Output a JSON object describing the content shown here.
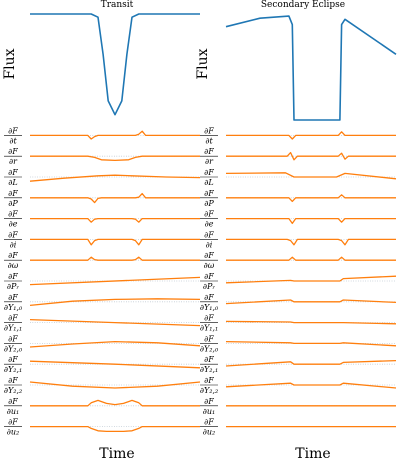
{
  "chart_data": [
    {
      "type": "line",
      "title": "Transit",
      "xlabel": "Time",
      "ylabel": "Flux",
      "x_ticks": "none",
      "y_ticks": "none",
      "flux": {
        "x": [
          0,
          0.36,
          0.4,
          0.43,
          0.46,
          0.5,
          0.54,
          0.57,
          0.6,
          0.64,
          1.0
        ],
        "y": [
          1,
          1,
          0.97,
          0.62,
          0.18,
          0.05,
          0.18,
          0.62,
          0.97,
          1,
          1
        ]
      },
      "derivatives": [
        {
          "label_num": "∂F",
          "label_den": "∂t",
          "x": [
            0,
            0.34,
            0.36,
            0.38,
            0.4,
            0.62,
            0.64,
            0.66,
            0.68,
            1
          ],
          "y": [
            0,
            0,
            -0.6,
            -0.2,
            0,
            0,
            0.2,
            0.7,
            0,
            0
          ]
        },
        {
          "label_num": "∂F",
          "label_den": "∂r",
          "x": [
            0,
            0.34,
            0.38,
            0.42,
            0.5,
            0.58,
            0.62,
            0.66,
            1
          ],
          "y": [
            0,
            0,
            -0.2,
            -0.6,
            -0.7,
            -0.6,
            -0.2,
            0,
            0
          ]
        },
        {
          "label_num": "∂F",
          "label_den": "∂L",
          "x": [
            0,
            0.2,
            0.4,
            0.5,
            0.6,
            0.8,
            1
          ],
          "y": [
            -0.7,
            -0.2,
            0.2,
            0.3,
            0.2,
            0,
            -0.1
          ]
        },
        {
          "label_num": "∂F",
          "label_den": "∂P",
          "x": [
            0,
            0.34,
            0.36,
            0.38,
            0.4,
            0.42,
            0.62,
            0.64,
            0.66,
            0.68,
            1
          ],
          "y": [
            0,
            0,
            -0.2,
            -0.8,
            -0.1,
            0,
            0,
            0.1,
            0.7,
            0,
            0
          ]
        },
        {
          "label_num": "∂F",
          "label_den": "∂e",
          "x": [
            0,
            0.34,
            0.36,
            0.38,
            0.4,
            0.6,
            0.62,
            0.64,
            0.66,
            1
          ],
          "y": [
            0,
            0,
            -0.6,
            -0.1,
            0,
            0,
            -0.1,
            -0.6,
            0,
            0
          ]
        },
        {
          "label_num": "∂F",
          "label_den": "∂i",
          "x": [
            0,
            0.34,
            0.36,
            0.38,
            0.4,
            0.6,
            0.62,
            0.64,
            0.66,
            1
          ],
          "y": [
            0,
            0,
            -0.9,
            -0.2,
            0,
            0,
            -0.2,
            -0.9,
            0,
            0
          ]
        },
        {
          "label_num": "∂F",
          "label_den": "∂ω",
          "x": [
            0,
            0.34,
            0.36,
            0.38,
            0.4,
            0.6,
            0.62,
            0.64,
            0.66,
            1
          ],
          "y": [
            0,
            0,
            0.5,
            0.1,
            0,
            0,
            0.1,
            0.5,
            0,
            0
          ]
        },
        {
          "label_num": "∂F",
          "label_den": "∂Pᵣ",
          "x": [
            0,
            1
          ],
          "y": [
            -0.6,
            0.6
          ]
        },
        {
          "label_num": "∂F",
          "label_den": "∂Y₁,₀",
          "x": [
            0,
            0.25,
            0.5,
            0.75,
            1
          ],
          "y": [
            -0.6,
            0.1,
            0.4,
            0.5,
            0.4
          ]
        },
        {
          "label_num": "∂F",
          "label_den": "∂Y₁,₁",
          "x": [
            0,
            0.5,
            1
          ],
          "y": [
            0.5,
            0,
            -0.5
          ]
        },
        {
          "label_num": "∂F",
          "label_den": "∂Y₂,₀",
          "x": [
            0,
            0.25,
            0.5,
            0.75,
            1
          ],
          "y": [
            -0.6,
            -0.1,
            0.3,
            0.1,
            -0.4
          ]
        },
        {
          "label_num": "∂F",
          "label_den": "∂Y₂,₁",
          "x": [
            0,
            0.5,
            1
          ],
          "y": [
            0.5,
            0,
            -0.6
          ]
        },
        {
          "label_num": "∂F",
          "label_den": "∂Y₂,₂",
          "x": [
            0,
            0.25,
            0.5,
            0.75,
            1
          ],
          "y": [
            0.5,
            -0.2,
            -0.5,
            -0.2,
            0.5
          ]
        },
        {
          "label_num": "∂F",
          "label_den": "∂u₁",
          "x": [
            0,
            0.34,
            0.36,
            0.4,
            0.45,
            0.5,
            0.55,
            0.6,
            0.64,
            0.66,
            1
          ],
          "y": [
            0,
            0,
            0.5,
            0.9,
            0.4,
            0.2,
            0.4,
            0.9,
            0.5,
            0,
            0
          ]
        },
        {
          "label_num": "∂F",
          "label_den": "∂u₂",
          "x": [
            0,
            0.34,
            0.36,
            0.4,
            0.45,
            0.5,
            0.55,
            0.6,
            0.64,
            0.66,
            1
          ],
          "y": [
            0,
            0,
            -0.3,
            -0.7,
            -0.8,
            -0.8,
            -0.8,
            -0.7,
            -0.3,
            0,
            0
          ]
        }
      ]
    },
    {
      "type": "line",
      "title": "Secondary Eclipse",
      "xlabel": "Time",
      "ylabel": "Flux",
      "x_ticks": "none",
      "y_ticks": "none",
      "flux": {
        "x": [
          0,
          0.2,
          0.37,
          0.39,
          0.4,
          0.67,
          0.68,
          0.7,
          1.0
        ],
        "y": [
          0.88,
          0.96,
          0.98,
          0.9,
          0.0,
          0.0,
          0.9,
          0.95,
          0.62
        ]
      },
      "derivatives": [
        {
          "label_num": "∂F",
          "label_den": "∂t",
          "x": [
            0,
            0.37,
            0.39,
            0.41,
            0.66,
            0.68,
            0.7,
            1
          ],
          "y": [
            0,
            0,
            -0.6,
            0,
            0,
            0.6,
            0,
            0
          ]
        },
        {
          "label_num": "∂F",
          "label_den": "∂r",
          "x": [
            0,
            0.36,
            0.38,
            0.4,
            0.42,
            0.66,
            0.68,
            0.7,
            0.72,
            1
          ],
          "y": [
            0,
            0,
            0.6,
            -0.6,
            0,
            0,
            0.5,
            -0.5,
            0,
            0
          ]
        },
        {
          "label_num": "∂F",
          "label_den": "∂L",
          "x": [
            0,
            0.35,
            0.4,
            0.45,
            0.65,
            0.7,
            1
          ],
          "y": [
            0.6,
            0.7,
            0,
            0,
            0,
            0.6,
            -0.3
          ]
        },
        {
          "label_num": "∂F",
          "label_den": "∂P",
          "x": [
            0,
            0.37,
            0.39,
            0.41,
            0.66,
            0.68,
            0.7,
            1
          ],
          "y": [
            0,
            0,
            -0.6,
            0,
            0,
            0.5,
            0,
            0
          ]
        },
        {
          "label_num": "∂F",
          "label_den": "∂e",
          "x": [
            0,
            0.37,
            0.39,
            0.41,
            0.66,
            0.68,
            0.7,
            1
          ],
          "y": [
            0,
            0,
            -0.8,
            0,
            0,
            -0.6,
            0,
            0
          ]
        },
        {
          "label_num": "∂F",
          "label_den": "∂i",
          "x": [
            0,
            0.36,
            0.38,
            0.4,
            0.42,
            0.66,
            0.68,
            0.7,
            0.72,
            1
          ],
          "y": [
            0,
            0,
            -0.2,
            -0.9,
            0,
            0,
            -0.2,
            -0.9,
            0,
            0
          ]
        },
        {
          "label_num": "∂F",
          "label_den": "∂ω",
          "x": [
            0,
            0.37,
            0.39,
            0.41,
            0.66,
            0.68,
            0.7,
            1
          ],
          "y": [
            0,
            0,
            0.5,
            0,
            0,
            0.5,
            0,
            0
          ]
        },
        {
          "label_num": "∂F",
          "label_den": "∂Pᵣ",
          "x": [
            0,
            0.38,
            0.4,
            0.67,
            0.69,
            1
          ],
          "y": [
            -0.3,
            0.1,
            0,
            0,
            0.4,
            0.8
          ]
        },
        {
          "label_num": "∂F",
          "label_den": "∂Y₁,₀",
          "x": [
            0,
            0.38,
            0.4,
            0.67,
            0.69,
            1
          ],
          "y": [
            -0.3,
            0.3,
            0,
            0,
            0.3,
            -0.1
          ]
        },
        {
          "label_num": "∂F",
          "label_den": "∂Y₁,₁",
          "x": [
            0,
            0.38,
            0.4,
            0.67,
            0.69,
            1
          ],
          "y": [
            0.2,
            0.1,
            0,
            0,
            0,
            -0.2
          ]
        },
        {
          "label_num": "∂F",
          "label_den": "∂Y₂,₀",
          "x": [
            0,
            0.38,
            0.4,
            0.67,
            0.69,
            1
          ],
          "y": [
            0.3,
            0.1,
            0,
            0,
            0.1,
            -0.4
          ]
        },
        {
          "label_num": "∂F",
          "label_den": "∂Y₂,₁",
          "x": [
            0,
            0.38,
            0.4,
            0.67,
            0.69,
            1
          ],
          "y": [
            -0.3,
            0.4,
            0,
            0,
            0.3,
            0.6
          ]
        },
        {
          "label_num": "∂F",
          "label_den": "∂Y₂,₂",
          "x": [
            0,
            0.38,
            0.4,
            0.67,
            0.69,
            1
          ],
          "y": [
            -0.3,
            0.3,
            0,
            0,
            0.3,
            -0.5
          ]
        },
        {
          "label_num": "∂F",
          "label_den": "∂u₁",
          "x": [
            0,
            1
          ],
          "y": [
            0,
            0
          ]
        },
        {
          "label_num": "∂F",
          "label_den": "∂u₂",
          "x": [
            0,
            1
          ],
          "y": [
            0,
            0
          ]
        }
      ]
    }
  ]
}
